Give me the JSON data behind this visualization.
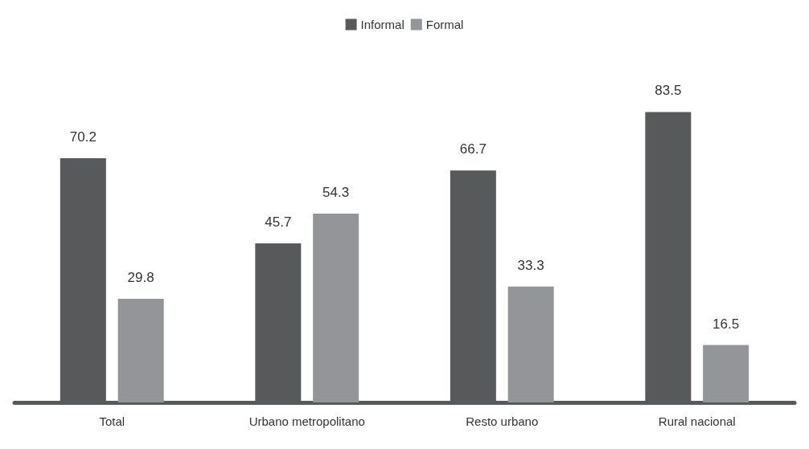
{
  "chart_data": {
    "type": "bar",
    "categories": [
      "Total",
      "Urbano metropolitano",
      "Resto urbano",
      "Rural nacional"
    ],
    "series": [
      {
        "name": "Informal",
        "color": "#58595b",
        "values": [
          70.2,
          45.7,
          66.7,
          83.5
        ]
      },
      {
        "name": "Formal",
        "color": "#939598",
        "values": [
          29.8,
          54.3,
          33.3,
          16.5
        ]
      }
    ],
    "data_labels": true,
    "legend": "top"
  }
}
